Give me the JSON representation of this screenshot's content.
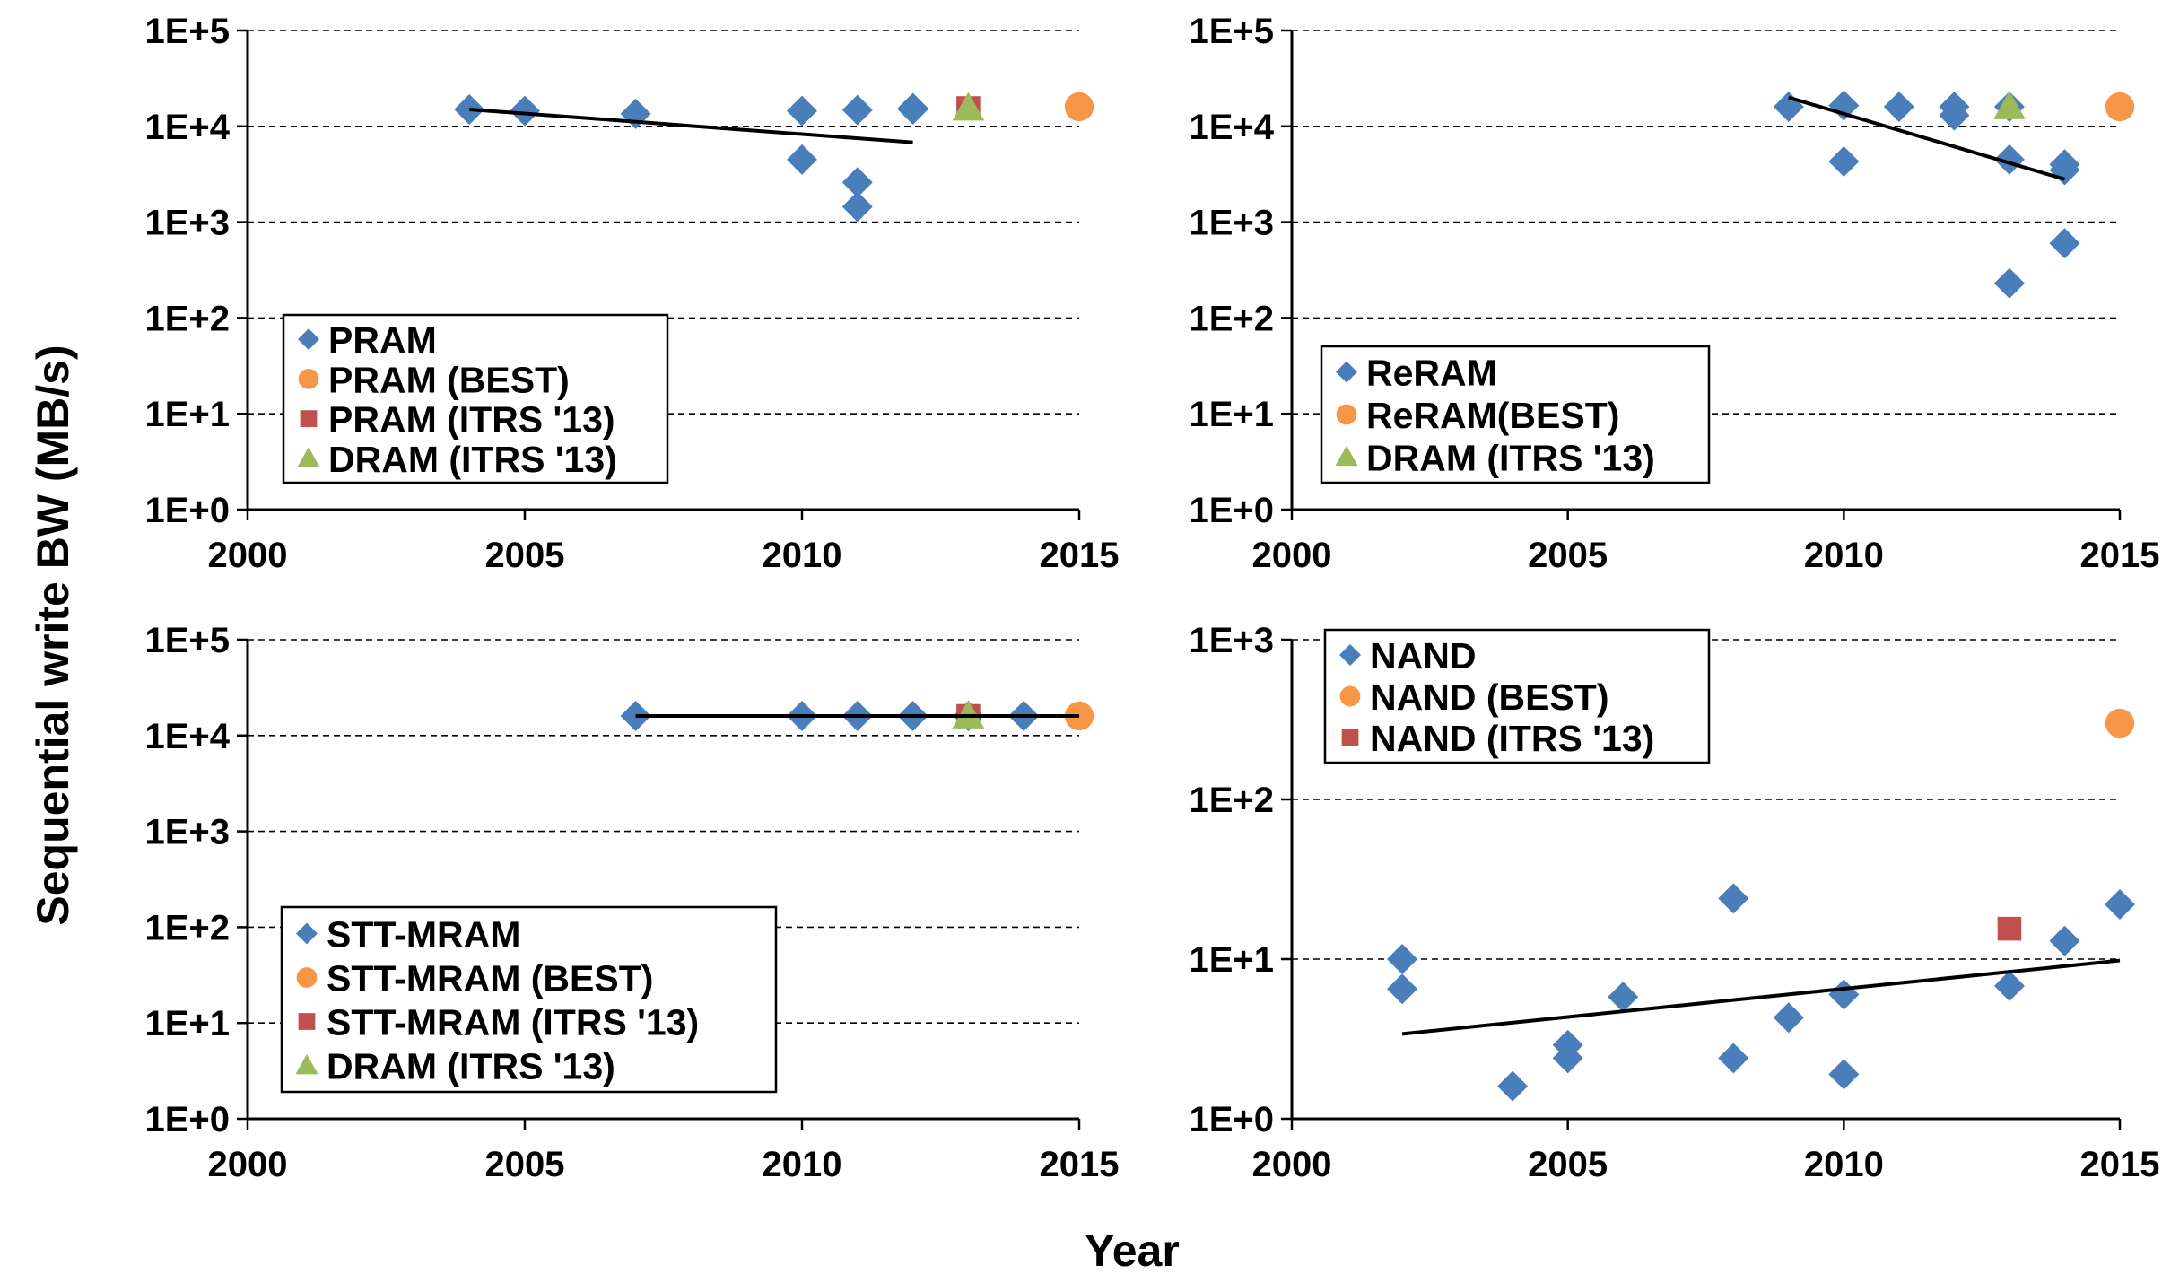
{
  "figure": {
    "ylabel": "Sequential write BW (MB/s)",
    "xlabel": "Year"
  },
  "colors": {
    "diamond": "#4a7ebb",
    "best": "#f79646",
    "itrs_square": "#c0504d",
    "dram_triangle": "#9bbb59",
    "trend": "#000000"
  },
  "chart_data": [
    {
      "type": "scatter",
      "panel": "top-left",
      "xlim": [
        2000,
        2015
      ],
      "xticks": [
        "2000",
        "2005",
        "2010",
        "2015"
      ],
      "y_scale": "log",
      "ylim": [
        1,
        100000
      ],
      "yticks": [
        "1E+0",
        "1E+1",
        "1E+2",
        "1E+3",
        "1E+4",
        "1E+5"
      ],
      "legend_position": "bottom-left",
      "series": [
        {
          "name": "PRAM",
          "marker": "diamond",
          "points": [
            [
              2004,
              15000
            ],
            [
              2005,
              14500
            ],
            [
              2007,
              13500
            ],
            [
              2010,
              14500
            ],
            [
              2010,
              4500
            ],
            [
              2011,
              14800
            ],
            [
              2011,
              2600
            ],
            [
              2011,
              1450
            ],
            [
              2012,
              15000
            ],
            [
              2012,
              15500
            ]
          ]
        },
        {
          "name": "PRAM (BEST)",
          "marker": "circle",
          "points": [
            [
              2015,
              16000
            ]
          ]
        },
        {
          "name": "PRAM (ITRS '13)",
          "marker": "square",
          "points": [
            [
              2013,
              15500
            ]
          ]
        },
        {
          "name": "DRAM (ITRS '13)",
          "marker": "triangle",
          "points": [
            [
              2013,
              15500
            ]
          ]
        }
      ],
      "trendline": [
        [
          2004,
          15000
        ],
        [
          2012,
          6800
        ]
      ]
    },
    {
      "type": "scatter",
      "panel": "top-right",
      "xlim": [
        2000,
        2015
      ],
      "xticks": [
        "2000",
        "2005",
        "2010",
        "2015"
      ],
      "y_scale": "log",
      "ylim": [
        1,
        100000
      ],
      "yticks": [
        "1E+0",
        "1E+1",
        "1E+2",
        "1E+3",
        "1E+4",
        "1E+5"
      ],
      "legend_position": "bottom-left",
      "series": [
        {
          "name": "ReRAM",
          "marker": "diamond",
          "points": [
            [
              2009,
              16000
            ],
            [
              2010,
              16500
            ],
            [
              2010,
              4300
            ],
            [
              2011,
              16000
            ],
            [
              2012,
              16000
            ],
            [
              2012,
              13000
            ],
            [
              2013,
              16000
            ],
            [
              2013,
              4500
            ],
            [
              2013,
              230
            ],
            [
              2014,
              4000
            ],
            [
              2014,
              3500
            ],
            [
              2014,
              600
            ]
          ]
        },
        {
          "name": "ReRAM(BEST)",
          "marker": "circle",
          "points": [
            [
              2015,
              16000
            ]
          ]
        },
        {
          "name": "DRAM (ITRS '13)",
          "marker": "triangle",
          "points": [
            [
              2013,
              16000
            ]
          ]
        }
      ],
      "trendline": [
        [
          2009,
          20000
        ],
        [
          2014,
          2800
        ]
      ]
    },
    {
      "type": "scatter",
      "panel": "bottom-left",
      "xlim": [
        2000,
        2015
      ],
      "xticks": [
        "2000",
        "2005",
        "2010",
        "2015"
      ],
      "y_scale": "log",
      "ylim": [
        1,
        100000
      ],
      "yticks": [
        "1E+0",
        "1E+1",
        "1E+2",
        "1E+3",
        "1E+4",
        "1E+5"
      ],
      "legend_position": "bottom-left",
      "series": [
        {
          "name": "STT-MRAM",
          "marker": "diamond",
          "points": [
            [
              2007,
              16000
            ],
            [
              2010,
              16000
            ],
            [
              2011,
              16000
            ],
            [
              2012,
              16000
            ],
            [
              2013,
              16000
            ],
            [
              2014,
              16000
            ]
          ]
        },
        {
          "name": "STT-MRAM (BEST)",
          "marker": "circle",
          "points": [
            [
              2015,
              16000
            ]
          ]
        },
        {
          "name": "STT-MRAM (ITRS '13)",
          "marker": "square",
          "points": [
            [
              2013,
              16000
            ]
          ]
        },
        {
          "name": "DRAM (ITRS '13)",
          "marker": "triangle",
          "points": [
            [
              2013,
              16000
            ]
          ]
        }
      ],
      "trendline": [
        [
          2007,
          16000
        ],
        [
          2015,
          16000
        ]
      ]
    },
    {
      "type": "scatter",
      "panel": "bottom-right",
      "xlim": [
        2000,
        2015
      ],
      "xticks": [
        "2000",
        "2005",
        "2010",
        "2015"
      ],
      "y_scale": "log",
      "ylim": [
        1,
        1000
      ],
      "yticks": [
        "1E+0",
        "1E+1",
        "1E+2",
        "1E+3"
      ],
      "legend_position": "top-left",
      "series": [
        {
          "name": "NAND",
          "marker": "diamond",
          "points": [
            [
              2002,
              10
            ],
            [
              2002,
              6.5
            ],
            [
              2004,
              1.6
            ],
            [
              2005,
              2.9
            ],
            [
              2005,
              2.4
            ],
            [
              2006,
              5.8
            ],
            [
              2008,
              24
            ],
            [
              2008,
              2.4
            ],
            [
              2009,
              4.3
            ],
            [
              2010,
              6.0
            ],
            [
              2010,
              1.9
            ],
            [
              2013,
              6.8
            ],
            [
              2014,
              13
            ],
            [
              2015,
              22
            ]
          ]
        },
        {
          "name": "NAND (BEST)",
          "marker": "circle",
          "points": [
            [
              2015,
              300
            ]
          ]
        },
        {
          "name": "NAND (ITRS '13)",
          "marker": "square",
          "points": [
            [
              2013,
              15.5
            ]
          ]
        }
      ],
      "trendline": [
        [
          2002,
          3.4
        ],
        [
          2015,
          9.8
        ]
      ]
    }
  ]
}
